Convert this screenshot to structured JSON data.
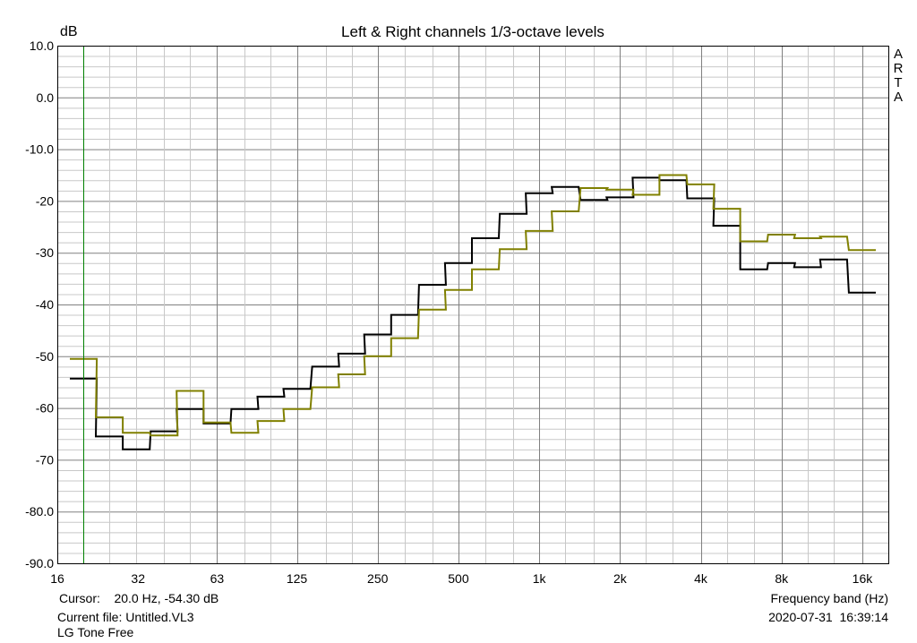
{
  "chart_data": {
    "type": "line",
    "title": "Left & Right channels 1/3-octave levels",
    "ylabel": "dB",
    "xlabel": "Frequency band (Hz)",
    "xscale": "log",
    "xlim": [
      16,
      20000
    ],
    "ylim": [
      -90,
      10
    ],
    "yticks": [
      10,
      0,
      -10,
      -20,
      -30,
      -40,
      -50,
      -60,
      -70,
      -80,
      -90
    ],
    "ytick_labels": [
      "10.0",
      "0.0",
      "-10.0",
      "-20",
      "-30",
      "-40",
      "-50",
      "-60",
      "-70",
      "-80.0",
      "-90.0"
    ],
    "xticks": [
      16,
      32,
      63,
      125,
      250,
      500,
      1000,
      2000,
      4000,
      8000,
      16000
    ],
    "xtick_labels": [
      "16",
      "32",
      "63",
      "125",
      "250",
      "500",
      "1k",
      "2k",
      "4k",
      "8k",
      "16k"
    ],
    "grid": true,
    "step": true,
    "bands": [
      20,
      25,
      31.5,
      40,
      50,
      63,
      80,
      100,
      125,
      160,
      200,
      250,
      315,
      400,
      500,
      630,
      800,
      1000,
      1250,
      1600,
      2000,
      2500,
      3150,
      4000,
      5000,
      6300,
      8000,
      10000,
      12500,
      16000
    ],
    "series": [
      {
        "color": "#000000",
        "values": [
          -54.3,
          -65.5,
          -68.0,
          -64.5,
          -60.2,
          -63.0,
          -60.2,
          -57.8,
          -56.3,
          -52.0,
          -49.5,
          -45.8,
          -42.0,
          -36.2,
          -32.0,
          -27.2,
          -22.5,
          -18.5,
          -17.3,
          -19.8,
          -19.3,
          -15.5,
          -16.0,
          -19.5,
          -24.8,
          -33.2,
          -32.0,
          -32.8,
          -31.3,
          -37.7
        ]
      },
      {
        "color": "#808000",
        "values": [
          -50.5,
          -61.8,
          -64.8,
          -65.3,
          -56.7,
          -62.8,
          -64.8,
          -62.5,
          -60.2,
          -56.0,
          -53.5,
          -50.0,
          -46.5,
          -41.0,
          -37.2,
          -33.2,
          -29.3,
          -25.8,
          -22.0,
          -17.5,
          -17.8,
          -18.8,
          -15.0,
          -16.8,
          -21.5,
          -27.8,
          -26.5,
          -27.2,
          -26.9,
          -29.5
        ]
      }
    ],
    "cursor_frequency": 20
  },
  "header": {
    "ylabel": "dB",
    "title": "Left & Right channels 1/3-octave levels",
    "brand": [
      "A",
      "R",
      "T",
      "A"
    ]
  },
  "footer": {
    "cursor": "Cursor:    20.0 Hz, -54.30 dB",
    "xlabel": "Frequency band (Hz)",
    "file": "Current file: Untitled.VL3",
    "timestamp": "2020-07-31  16:39:14",
    "device": "LG Tone Free"
  },
  "colors": {
    "grid_major": "#808080",
    "grid_minor": "#c8c8c8",
    "cursor": "#008000"
  }
}
